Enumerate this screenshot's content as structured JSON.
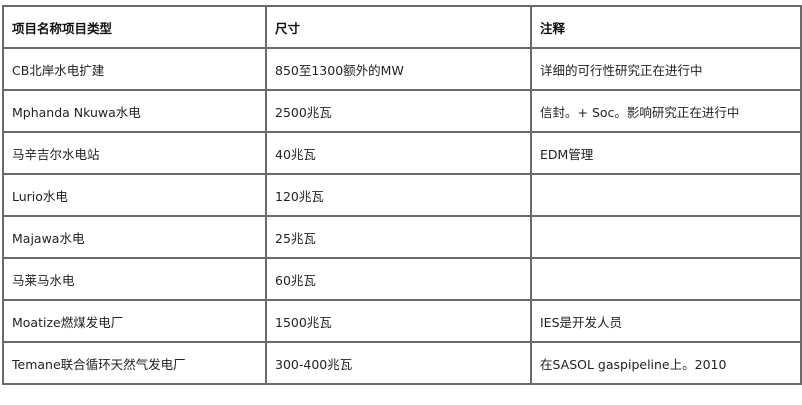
{
  "table": {
    "headers": [
      "项目名称项目类型",
      "尺寸",
      "注释"
    ],
    "rows": [
      [
        "CB北岸水电扩建",
        "850至1300额外的MW",
        "详细的可行性研究正在进行中"
      ],
      [
        "Mphanda Nkuwa水电",
        "2500兆瓦",
        "信封。+ Soc。影响研究正在进行中"
      ],
      [
        "马辛吉尔水电站",
        "40兆瓦",
        "EDM管理"
      ],
      [
        "Lurio水电",
        "120兆瓦",
        ""
      ],
      [
        "Majawa水电",
        "25兆瓦",
        ""
      ],
      [
        "马莱马水电",
        "60兆瓦",
        ""
      ],
      [
        "Moatize燃煤发电厂",
        "1500兆瓦",
        "IES是开发人员"
      ],
      [
        "Temane联合循环天然气发电厂",
        "300-400兆瓦",
        "在SASOL gaspipeline上。2010"
      ]
    ]
  }
}
